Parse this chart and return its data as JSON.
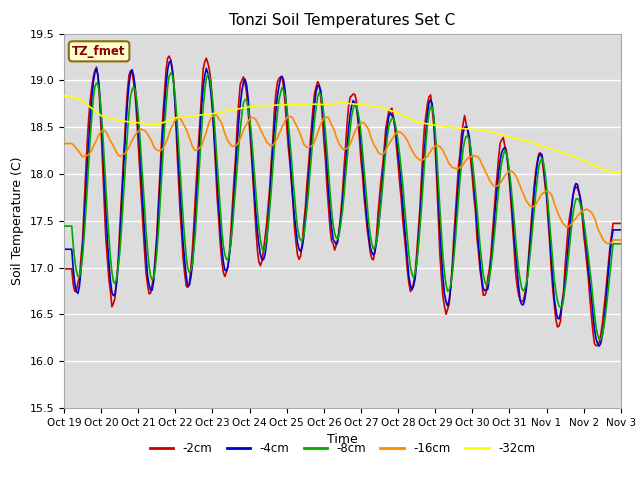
{
  "title": "Tonzi Soil Temperatures Set C",
  "xlabel": "Time",
  "ylabel": "Soil Temperature (C)",
  "ylim": [
    15.5,
    19.5
  ],
  "xlim": [
    0,
    360
  ],
  "tick_labels": [
    "Oct 19",
    "Oct 20",
    "Oct 21",
    "Oct 22",
    "Oct 23",
    "Oct 24",
    "Oct 25",
    "Oct 26",
    "Oct 27",
    "Oct 28",
    "Oct 29",
    "Oct 30",
    "Oct 31",
    "Nov 1",
    "Nov 2",
    "Nov 3"
  ],
  "colors": {
    "-2cm": "#cc0000",
    "-4cm": "#0000cc",
    "-8cm": "#00aa00",
    "-16cm": "#ff8800",
    "-32cm": "#ffff00"
  },
  "legend_label": "TZ_fmet",
  "bg_color": "#dcdcdc",
  "grid_color": "#ffffff"
}
